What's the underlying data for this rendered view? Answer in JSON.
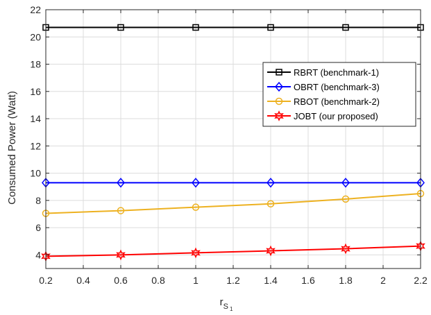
{
  "chart_data": {
    "type": "line",
    "xlabel": "r",
    "xlabel_sub": "S",
    "xlabel_subsub": "1",
    "ylabel": "Consumed Power (Watt)",
    "xlim": [
      0.2,
      2.2
    ],
    "ylim": [
      3,
      22
    ],
    "xticks": [
      0.2,
      0.4,
      0.6,
      0.8,
      1,
      1.2,
      1.4,
      1.6,
      1.8,
      2,
      2.2
    ],
    "xtick_labels": [
      "0.2",
      "0.4",
      "0.6",
      "0.8",
      "1",
      "1.2",
      "1.4",
      "1.6",
      "1.8",
      "2",
      "2.2"
    ],
    "yticks": [
      4,
      6,
      8,
      10,
      12,
      14,
      16,
      18,
      20,
      22
    ],
    "ytick_labels": [
      "4",
      "6",
      "8",
      "10",
      "12",
      "14",
      "16",
      "18",
      "20",
      "22"
    ],
    "grid": true,
    "legend_position": "top-right",
    "x": [
      0.2,
      0.6,
      1.0,
      1.4,
      1.8,
      2.2
    ],
    "series": [
      {
        "name": "RBRT (benchmark-1)",
        "color": "#000000",
        "marker": "square",
        "values": [
          20.7,
          20.7,
          20.7,
          20.7,
          20.7,
          20.7
        ]
      },
      {
        "name": "OBRT (benchmark-3)",
        "color": "#0000ff",
        "marker": "diamond",
        "values": [
          9.3,
          9.3,
          9.3,
          9.3,
          9.3,
          9.3
        ]
      },
      {
        "name": "RBOT (benchmark-2)",
        "color": "#edb120",
        "marker": "circle",
        "values": [
          7.05,
          7.25,
          7.5,
          7.75,
          8.1,
          8.5
        ]
      },
      {
        "name": "JOBT (our proposed)",
        "color": "#ff0000",
        "marker": "hexagram",
        "values": [
          3.9,
          4.0,
          4.15,
          4.3,
          4.45,
          4.65
        ]
      }
    ]
  }
}
